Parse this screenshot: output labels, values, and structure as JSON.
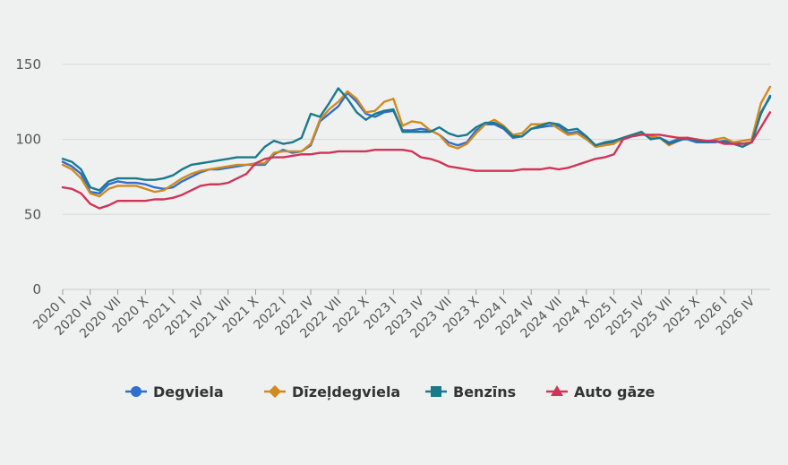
{
  "chart_data": {
    "type": "line",
    "ylim": [
      0,
      160
    ],
    "yticks": [
      0,
      50,
      100,
      150
    ],
    "grid": true,
    "legend_position": "bottom",
    "quarters_per_year": 4,
    "start": {
      "year": 2020,
      "month": 1
    },
    "x_tick_labels": [
      "2020 I",
      "2020 IV",
      "2020 VII",
      "2020 X",
      "2021 I",
      "2021 IV",
      "2021 VII",
      "2021 X",
      "2022 I",
      "2022 IV",
      "2022 VII",
      "2022 X",
      "2023 I",
      "2023 IV",
      "2023 VII",
      "2023 X",
      "2024 I",
      "2024 IV",
      "2024 VII",
      "2024 X",
      "2025 I",
      "2025 IV",
      "2025 VII",
      "2025 X",
      "2026 I",
      "2026 IV"
    ],
    "series": [
      {
        "name": "Degviela",
        "color": "#2f6fcf",
        "marker": "circle",
        "values": [
          85,
          82,
          77,
          65,
          64,
          70,
          72,
          71,
          71,
          70,
          68,
          67,
          68,
          72,
          75,
          78,
          80,
          80,
          81,
          82,
          83,
          83,
          83,
          90,
          93,
          91,
          92,
          96,
          112,
          117,
          122,
          131,
          125,
          117,
          115,
          118,
          119,
          106,
          106,
          107,
          106,
          103,
          98,
          96,
          98,
          106,
          110,
          110,
          107,
          101,
          102,
          107,
          108,
          109,
          109,
          104,
          105,
          101,
          96,
          97,
          98,
          100,
          102,
          104,
          101,
          101,
          98,
          100,
          100,
          98,
          98,
          98,
          99,
          98,
          97,
          98,
          118,
          128
        ]
      },
      {
        "name": "Dīzeļdegviela",
        "color": "#d28a1f",
        "marker": "diamond",
        "values": [
          83,
          80,
          74,
          64,
          62,
          67,
          69,
          69,
          69,
          67,
          65,
          66,
          70,
          74,
          77,
          79,
          80,
          81,
          82,
          83,
          83,
          84,
          84,
          91,
          92,
          92,
          92,
          97,
          113,
          120,
          125,
          132,
          127,
          118,
          119,
          125,
          127,
          109,
          112,
          111,
          106,
          103,
          96,
          94,
          97,
          104,
          110,
          113,
          109,
          103,
          104,
          110,
          110,
          111,
          107,
          103,
          104,
          100,
          95,
          96,
          97,
          101,
          103,
          104,
          102,
          101,
          96,
          99,
          101,
          100,
          98,
          100,
          101,
          98,
          99,
          100,
          124,
          135
        ]
      },
      {
        "name": "Benzīns",
        "color": "#1a7a8c",
        "marker": "square",
        "values": [
          87,
          85,
          80,
          68,
          66,
          72,
          74,
          74,
          74,
          73,
          73,
          74,
          76,
          80,
          83,
          84,
          85,
          86,
          87,
          88,
          88,
          88,
          95,
          99,
          97,
          98,
          101,
          117,
          115,
          124,
          134,
          127,
          118,
          113,
          117,
          119,
          120,
          105,
          105,
          105,
          105,
          108,
          104,
          102,
          103,
          108,
          111,
          111,
          108,
          102,
          102,
          107,
          109,
          111,
          110,
          106,
          107,
          102,
          96,
          98,
          99,
          101,
          103,
          105,
          100,
          101,
          97,
          99,
          101,
          99,
          98,
          99,
          98,
          97,
          95,
          98,
          117,
          129
        ]
      },
      {
        "name": "Auto gāze",
        "color": "#d13458",
        "marker": "triangle",
        "values": [
          68,
          67,
          64,
          57,
          54,
          56,
          59,
          59,
          59,
          59,
          60,
          60,
          61,
          63,
          66,
          69,
          70,
          70,
          71,
          74,
          77,
          84,
          87,
          88,
          88,
          89,
          90,
          90,
          91,
          91,
          92,
          92,
          92,
          92,
          93,
          93,
          93,
          93,
          92,
          88,
          87,
          85,
          82,
          81,
          80,
          79,
          79,
          79,
          79,
          79,
          80,
          80,
          80,
          81,
          80,
          81,
          83,
          85,
          87,
          88,
          90,
          100,
          102,
          103,
          103,
          103,
          102,
          101,
          101,
          100,
          99,
          99,
          97,
          97,
          97,
          98,
          108,
          118
        ]
      }
    ]
  }
}
